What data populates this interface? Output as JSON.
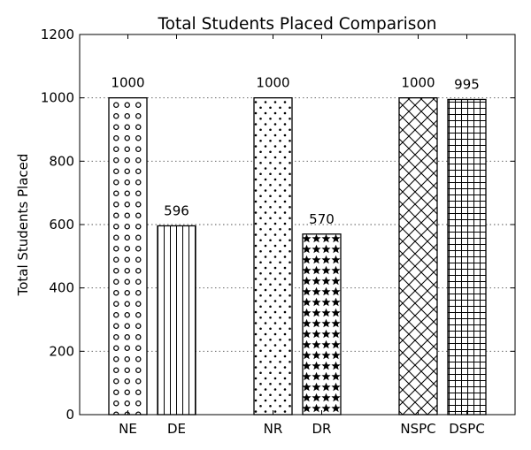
{
  "chart_data": {
    "type": "bar",
    "title": "Total Students Placed Comparison",
    "xlabel": "",
    "ylabel": "Total Students Placed",
    "ylim": [
      0,
      1200
    ],
    "yticks": [
      0,
      200,
      400,
      600,
      800,
      1000,
      1200
    ],
    "grid": "y-dotted",
    "categories": [
      "NE",
      "DE",
      "NR",
      "DR",
      "NSPC",
      "DSPC"
    ],
    "values": [
      1000,
      596,
      1000,
      570,
      1000,
      995
    ],
    "data_labels": [
      "1000",
      "596",
      "1000",
      "570",
      "1000",
      "995"
    ],
    "hatches": [
      "circles",
      "vertical-lines",
      "dots",
      "stars",
      "crosshatch-diagonal",
      "grid"
    ],
    "bar_fill": "#ffffff",
    "bar_stroke": "#000000",
    "grid_color": "#555555"
  }
}
